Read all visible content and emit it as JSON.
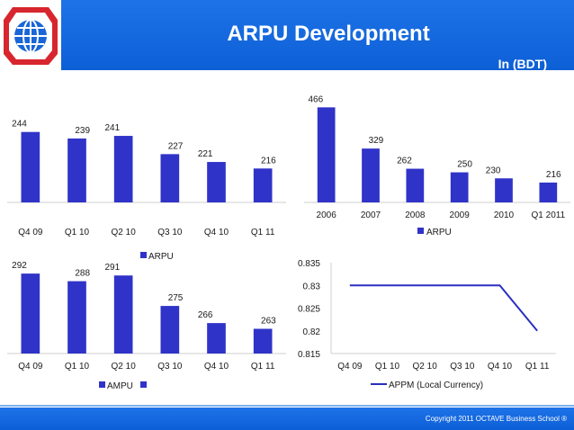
{
  "header": {
    "title": "ARPU Development",
    "unit_label": "In (BDT)"
  },
  "footer": {
    "copyright": "Copyright 2011   OCTAVE Business School ®"
  },
  "colors": {
    "bar": "#3033c8",
    "line": "#2a2fbf",
    "header_blue": "#1666e0",
    "logo_red": "#d8262e",
    "logo_blue": "#1a66d6"
  },
  "chart_data": [
    {
      "type": "bar",
      "categories": [
        "Q4 09",
        "Q1 10",
        "Q2 10",
        "Q3 10",
        "Q4 10",
        "Q1 11"
      ],
      "series": [
        {
          "name": "",
          "values": [
            244,
            239,
            241,
            227,
            221,
            216
          ]
        }
      ],
      "ylim": [
        190,
        250
      ],
      "legend": [],
      "grid": false
    },
    {
      "type": "bar",
      "categories": [
        "2006",
        "2007",
        "2008",
        "2009",
        "2010",
        "Q1 2011"
      ],
      "series": [
        {
          "name": "ARPU",
          "values": [
            466,
            329,
            262,
            250,
            230,
            216
          ]
        }
      ],
      "ylim": [
        150,
        470
      ],
      "legend": [
        "ARPU"
      ],
      "legend_position": "bottom",
      "grid": false
    },
    {
      "type": "bar",
      "categories": [
        "Q4 09",
        "Q1 10",
        "Q2 10",
        "Q3 10",
        "Q4 10",
        "Q1 11"
      ],
      "series": [
        {
          "name": "AMPU",
          "values": [
            292,
            288,
            291,
            275,
            266,
            263
          ]
        }
      ],
      "ylim": [
        250,
        293
      ],
      "legend": [
        "AMPU"
      ],
      "legend_position": "bottom",
      "top_legend": [
        "ARPU"
      ],
      "grid": false
    },
    {
      "type": "line",
      "categories": [
        "Q4 09",
        "Q1 10",
        "Q2 10",
        "Q3 10",
        "Q4 10",
        "Q1 11"
      ],
      "series": [
        {
          "name": "APPM (Local Currency)",
          "values": [
            0.83,
            0.83,
            0.83,
            0.83,
            0.83,
            0.82
          ]
        }
      ],
      "ylim": [
        0.815,
        0.835
      ],
      "yticks": [
        "0.835",
        "0.83",
        "0.825",
        "0.82",
        "0.815"
      ],
      "legend": [
        "APPM (Local Currency)"
      ],
      "legend_position": "bottom",
      "grid": false
    }
  ]
}
